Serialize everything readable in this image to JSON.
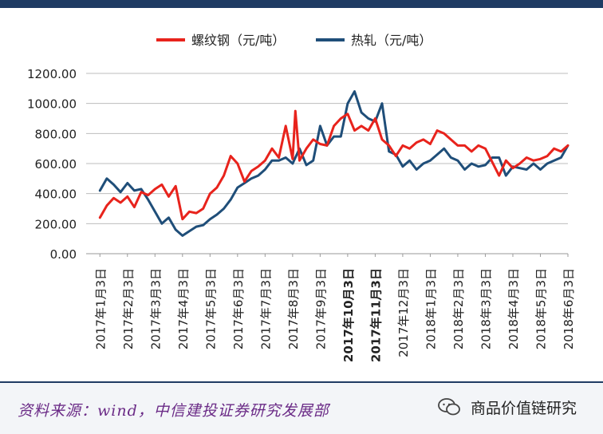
{
  "chart_data": {
    "type": "line",
    "title": "",
    "xlabel": "",
    "ylabel": "",
    "ylim": [
      0,
      1200
    ],
    "y_ticks": [
      "0.00",
      "200.00",
      "400.00",
      "600.00",
      "800.00",
      "1000.00",
      "1200.00"
    ],
    "grid": true,
    "legend_position": "top-center",
    "categories": [
      "2017年1月3日",
      "2017年2月3日",
      "2017年3月3日",
      "2017年4月3日",
      "2017年5月3日",
      "2017年6月3日",
      "2017年7月3日",
      "2017年8月3日",
      "2017年9月3日",
      "2017年10月3日",
      "2017年11月3日",
      "2017年12月3日",
      "2018年1月3日",
      "2018年2月3日",
      "2018年3月3日",
      "2018年4月3日",
      "2018年5月3日",
      "2018年6月3日"
    ],
    "series": [
      {
        "name": "螺纹钢（元/吨）",
        "color": "#e8231c",
        "x": [
          0,
          0.25,
          0.5,
          0.75,
          1,
          1.25,
          1.5,
          1.75,
          2,
          2.25,
          2.5,
          2.75,
          3,
          3.25,
          3.5,
          3.75,
          4,
          4.25,
          4.5,
          4.75,
          5,
          5.25,
          5.5,
          5.75,
          6,
          6.25,
          6.5,
          6.75,
          7,
          7.1,
          7.25,
          7.5,
          7.75,
          8,
          8.25,
          8.5,
          8.75,
          9,
          9.25,
          9.5,
          9.75,
          10,
          10.25,
          10.5,
          10.75,
          11,
          11.25,
          11.5,
          11.75,
          12,
          12.25,
          12.5,
          12.75,
          13,
          13.25,
          13.5,
          13.75,
          14,
          14.25,
          14.5,
          14.75,
          15,
          15.25,
          15.5,
          15.75,
          16,
          16.25,
          16.5,
          16.75,
          17
        ],
        "values": [
          240,
          320,
          370,
          340,
          380,
          310,
          410,
          390,
          430,
          460,
          380,
          450,
          230,
          280,
          270,
          300,
          400,
          440,
          520,
          650,
          600,
          480,
          550,
          580,
          620,
          700,
          640,
          850,
          630,
          950,
          620,
          700,
          760,
          730,
          720,
          850,
          900,
          930,
          820,
          850,
          820,
          900,
          760,
          720,
          650,
          720,
          700,
          740,
          760,
          730,
          820,
          800,
          760,
          720,
          720,
          680,
          720,
          700,
          610,
          520,
          620,
          570,
          600,
          640,
          620,
          630,
          650,
          700,
          680,
          720
        ],
        "values_note": "estimated from chart"
      },
      {
        "name": "热轧（元/吨）",
        "color": "#1f4e79",
        "x": [
          0,
          0.25,
          0.5,
          0.75,
          1,
          1.25,
          1.5,
          1.75,
          2,
          2.25,
          2.5,
          2.75,
          3,
          3.25,
          3.5,
          3.75,
          4,
          4.25,
          4.5,
          4.75,
          5,
          5.25,
          5.5,
          5.75,
          6,
          6.25,
          6.5,
          6.75,
          7,
          7.25,
          7.5,
          7.75,
          8,
          8.25,
          8.5,
          8.75,
          9,
          9.25,
          9.5,
          9.75,
          10,
          10.25,
          10.5,
          10.75,
          11,
          11.25,
          11.5,
          11.75,
          12,
          12.25,
          12.5,
          12.75,
          13,
          13.25,
          13.5,
          13.75,
          14,
          14.25,
          14.5,
          14.75,
          15,
          15.25,
          15.5,
          15.75,
          16,
          16.25,
          16.5,
          16.75,
          17
        ],
        "values": [
          420,
          500,
          460,
          410,
          470,
          420,
          430,
          360,
          280,
          200,
          240,
          160,
          120,
          150,
          180,
          190,
          230,
          260,
          300,
          360,
          440,
          470,
          500,
          520,
          560,
          620,
          620,
          640,
          600,
          700,
          590,
          620,
          850,
          720,
          780,
          780,
          1000,
          1080,
          940,
          900,
          880,
          1000,
          680,
          660,
          580,
          620,
          560,
          600,
          620,
          660,
          700,
          640,
          620,
          560,
          600,
          580,
          590,
          640,
          640,
          520,
          580,
          570,
          560,
          600,
          560,
          600,
          620,
          640,
          720
        ]
      }
    ]
  },
  "footer": {
    "source": "资料来源：wind，中信建投证券研究发展部",
    "watermark": "商品价值链研究"
  }
}
